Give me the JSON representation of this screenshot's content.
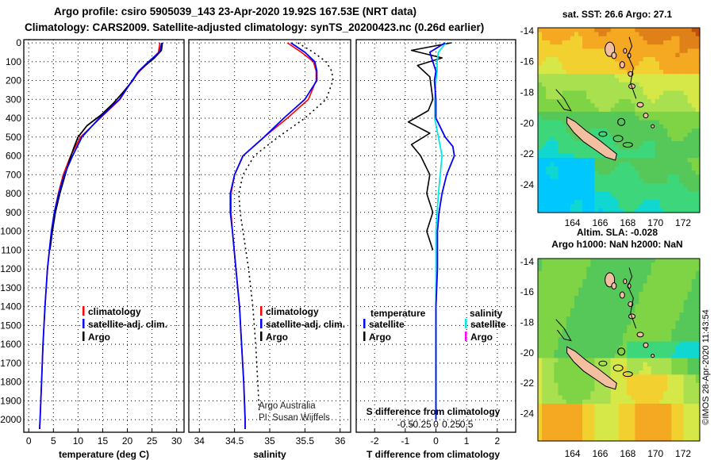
{
  "header": {
    "line1": "Argo profile: csiro 5905039_143 23-Apr-2020 19.92S 167.53E (NRT data)",
    "line2": "Climatology: CARS2009. Satellite-adjusted climatology: synTS_20200423.nc (0.26d earlier)"
  },
  "colors": {
    "climatology": "#ff0000",
    "satellite": "#0000ff",
    "argo": "#000000",
    "sal_satellite": "#00e8e8",
    "sal_argo": "#ff00ff"
  },
  "depth_ticks": [
    "0",
    "100",
    "200",
    "300",
    "400",
    "500",
    "600",
    "700",
    "800",
    "900",
    "1000",
    "1100",
    "1200",
    "1300",
    "1400",
    "1500",
    "1600",
    "1700",
    "1800",
    "1900",
    "2000"
  ],
  "panel_temp": {
    "xlabel": "temperature (deg C)",
    "ticks": [
      "0",
      "5",
      "10",
      "15",
      "20",
      "25",
      "30"
    ],
    "legend": [
      "climatology",
      "satellite-adj. clim.",
      "Argo"
    ]
  },
  "panel_sal": {
    "xlabel": "salinity",
    "ticks": [
      "34",
      "34.5",
      "35",
      "35.5",
      "36"
    ],
    "legend": [
      "climatology",
      "satellite-adj. clim.",
      "Argo"
    ],
    "credit1": "Argo Australia",
    "credit2": "PI: Susan Wijffels"
  },
  "panel_diff": {
    "xlabel": "T difference from climatology",
    "ticks": [
      "-2",
      "-1",
      "0",
      "1",
      "2"
    ],
    "sal_title": "S difference from climatology",
    "sal_ticks": [
      "-0.5",
      "-0.25",
      "0",
      "0.25",
      "0.5"
    ],
    "legend_temp_head": "temperature",
    "legend_sal_head": "salinity",
    "legend_satellite": "satellite",
    "legend_argo": "Argo"
  },
  "map_top": {
    "title": "sat. SST: 26.6 Argo: 27.1",
    "lat_ticks": [
      "-14",
      "-16",
      "-18",
      "-20",
      "-22",
      "-24"
    ],
    "lon_ticks": [
      "164",
      "166",
      "168",
      "170",
      "172"
    ]
  },
  "map_bottom": {
    "title1": "Altim. SLA: -0.028",
    "title2": "Argo h1000: NaN h2000: NaN",
    "lat_ticks": [
      "-14",
      "-16",
      "-18",
      "-20",
      "-22",
      "-24"
    ],
    "lon_ticks": [
      "164",
      "166",
      "168",
      "170",
      "172"
    ]
  },
  "sidebar_text": "©IMOS 28-Apr-2020 11:43:54",
  "chart_data": [
    {
      "type": "line",
      "title": "temperature",
      "xlabel": "temperature (deg C)",
      "ylabel": "depth",
      "xlim": [
        -1,
        31.5
      ],
      "ylim": [
        2050,
        0
      ],
      "series": [
        {
          "name": "climatology",
          "depth": [
            0,
            50,
            100,
            150,
            200,
            300,
            400,
            500,
            600,
            700,
            800,
            900,
            1000,
            1200,
            1400,
            1600,
            1800,
            2000,
            2050
          ],
          "values": [
            26.6,
            26.3,
            24.5,
            22.5,
            21.0,
            18.5,
            14.5,
            10.5,
            8.5,
            7.0,
            6.0,
            5.2,
            4.6,
            3.8,
            3.3,
            2.9,
            2.6,
            2.3,
            2.2
          ]
        },
        {
          "name": "satellite-adj. clim.",
          "depth": [
            0,
            50,
            100,
            150,
            200,
            300,
            400,
            500,
            600,
            700,
            800,
            900,
            1000,
            1200,
            1400,
            1600,
            1800,
            2000,
            2050
          ],
          "values": [
            27.0,
            26.5,
            24.3,
            22.3,
            21.0,
            18.4,
            14.3,
            10.8,
            8.9,
            7.2,
            6.1,
            5.2,
            4.6,
            3.8,
            3.3,
            2.9,
            2.6,
            2.3,
            2.2
          ]
        },
        {
          "name": "Argo",
          "depth": [
            0,
            40,
            80,
            120,
            160,
            200,
            260,
            320,
            380,
            440,
            500,
            560,
            620,
            700,
            800,
            900,
            1000,
            1100
          ],
          "values": [
            27.1,
            26.9,
            25.5,
            23.6,
            22.0,
            21.1,
            19.2,
            17.2,
            14.8,
            11.8,
            10.0,
            9.1,
            8.3,
            7.4,
            6.3,
            5.4,
            4.8,
            4.3
          ]
        }
      ]
    },
    {
      "type": "line",
      "title": "salinity",
      "xlabel": "salinity",
      "ylabel": "depth",
      "xlim": [
        33.85,
        36.15
      ],
      "ylim": [
        2050,
        0
      ],
      "series": [
        {
          "name": "climatology",
          "depth": [
            0,
            50,
            100,
            150,
            200,
            300,
            400,
            500,
            600,
            700,
            800,
            900,
            1000,
            1200,
            1400,
            1600,
            1800,
            2000,
            2050
          ],
          "values": [
            35.25,
            35.45,
            35.62,
            35.66,
            35.66,
            35.55,
            35.25,
            34.92,
            34.62,
            34.5,
            34.45,
            34.45,
            34.47,
            34.52,
            34.57,
            34.6,
            34.63,
            34.65,
            34.65
          ]
        },
        {
          "name": "satellite-adj. clim.",
          "depth": [
            0,
            50,
            100,
            150,
            200,
            300,
            400,
            500,
            600,
            700,
            800,
            900,
            1000,
            1200,
            1400,
            1600,
            1800,
            2000,
            2050
          ],
          "values": [
            35.3,
            35.5,
            35.64,
            35.67,
            35.67,
            35.5,
            35.2,
            34.92,
            34.62,
            34.5,
            34.44,
            34.44,
            34.47,
            34.52,
            34.57,
            34.6,
            34.63,
            34.65,
            34.65
          ]
        },
        {
          "name": "Argo",
          "depth": [
            0,
            50,
            100,
            150,
            200,
            300,
            400,
            500,
            600,
            700,
            800,
            900,
            1000,
            1200,
            1400,
            1600,
            1800,
            1950
          ],
          "values": [
            35.4,
            35.62,
            35.8,
            35.88,
            35.9,
            35.8,
            35.5,
            35.12,
            34.78,
            34.62,
            34.56,
            34.58,
            34.62,
            34.7,
            34.76,
            34.8,
            34.83,
            34.85
          ]
        }
      ]
    },
    {
      "type": "line",
      "title": "T difference from climatology",
      "xlabel": "T difference from climatology",
      "ylabel": "depth",
      "xlim": [
        -2.6,
        2.6
      ],
      "ylim": [
        2050,
        0
      ],
      "series": [
        {
          "name": "temperature satellite",
          "depth": [
            0,
            50,
            100,
            150,
            200,
            300,
            400,
            500,
            550,
            600,
            700,
            800,
            900,
            1000,
            1200,
            1400,
            1600,
            1800,
            2000
          ],
          "values": [
            0.3,
            -0.2,
            -0.1,
            0.0,
            -0.05,
            0.0,
            0.0,
            0.3,
            0.55,
            0.6,
            0.35,
            0.2,
            0.1,
            0.05,
            0.05,
            0.0,
            0.0,
            0.0,
            0.0
          ]
        },
        {
          "name": "temperature Argo",
          "depth": [
            0,
            40,
            80,
            120,
            180,
            240,
            300,
            360,
            420,
            480,
            540,
            600,
            700,
            800,
            900,
            1000,
            1100
          ],
          "values": [
            0.5,
            -0.8,
            0.2,
            -0.6,
            -0.2,
            -0.15,
            -0.1,
            -0.25,
            -0.9,
            -0.2,
            -0.8,
            -0.5,
            -0.2,
            -0.3,
            -0.1,
            -0.3,
            -0.1
          ]
        },
        {
          "name": "salinity satellite",
          "depth": [
            0,
            50,
            100,
            150,
            200,
            300,
            400,
            500,
            600,
            800,
            1000,
            1400,
            1800,
            2000
          ],
          "values": [
            0.08,
            0.02,
            0.01,
            0.01,
            0.0,
            -0.01,
            -0.01,
            0.02,
            0.05,
            0.02,
            0.0,
            0.0,
            0.0,
            0.0
          ]
        }
      ]
    }
  ]
}
